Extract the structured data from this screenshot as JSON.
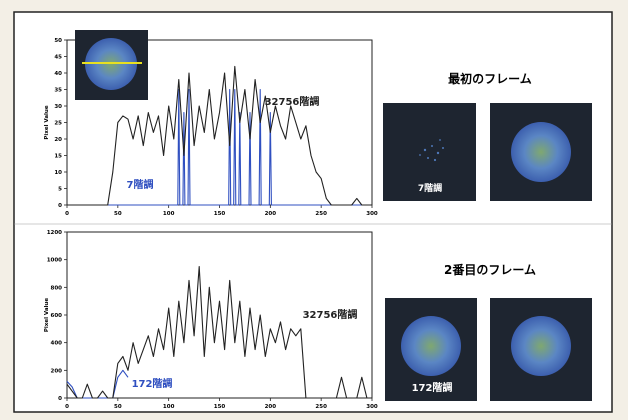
{
  "chart_data": [
    {
      "type": "line",
      "y_label": "Pixel Value",
      "xlim": [
        0,
        300
      ],
      "xticks": [
        0,
        50,
        100,
        150,
        200,
        250,
        300
      ],
      "ylim": [
        0,
        50
      ],
      "yticks": [
        0,
        5,
        10,
        15,
        20,
        25,
        30,
        35,
        40,
        45,
        50
      ],
      "series": [
        {
          "name": "32756階調",
          "color": "#222222",
          "x": [
            0,
            5,
            10,
            15,
            20,
            25,
            30,
            35,
            40,
            45,
            50,
            55,
            60,
            65,
            70,
            75,
            80,
            85,
            90,
            95,
            100,
            105,
            110,
            115,
            120,
            125,
            130,
            135,
            140,
            145,
            150,
            155,
            160,
            165,
            170,
            175,
            180,
            185,
            190,
            195,
            200,
            205,
            210,
            215,
            220,
            225,
            230,
            235,
            240,
            245,
            250,
            255,
            260,
            265,
            270,
            275,
            280,
            285,
            290,
            295,
            300
          ],
          "values": [
            0,
            0,
            0,
            0,
            0,
            0,
            0,
            0,
            0,
            10,
            25,
            27,
            26,
            20,
            27,
            18,
            28,
            22,
            27,
            15,
            30,
            20,
            38,
            15,
            40,
            18,
            30,
            22,
            35,
            20,
            28,
            40,
            18,
            42,
            25,
            35,
            20,
            38,
            25,
            33,
            22,
            30,
            24,
            20,
            30,
            25,
            20,
            24,
            15,
            10,
            8,
            2,
            0,
            0,
            0,
            0,
            0,
            2,
            0,
            0,
            0
          ]
        },
        {
          "name": "7階調",
          "color": "#2f4fc0",
          "x": [
            0,
            109,
            110,
            111,
            114,
            115,
            116,
            119,
            120,
            121,
            159,
            160,
            161,
            164,
            165,
            166,
            169,
            170,
            171,
            179,
            180,
            181,
            189,
            190,
            191,
            199,
            200,
            201,
            300
          ],
          "values": [
            0,
            0,
            35,
            0,
            0,
            28,
            0,
            0,
            35,
            0,
            0,
            35,
            0,
            0,
            35,
            0,
            0,
            28,
            0,
            0,
            28,
            0,
            0,
            35,
            0,
            0,
            28,
            0,
            0
          ]
        }
      ]
    },
    {
      "type": "line",
      "y_label": "Pixel Value",
      "xlim": [
        0,
        300
      ],
      "xticks": [
        0,
        50,
        100,
        150,
        200,
        250,
        300
      ],
      "ylim": [
        0,
        1200
      ],
      "yticks": [
        0,
        200,
        400,
        600,
        800,
        1000,
        1200
      ],
      "series": [
        {
          "name": "32756階調",
          "color": "#222222",
          "x": [
            0,
            5,
            10,
            15,
            20,
            25,
            30,
            35,
            40,
            45,
            50,
            55,
            60,
            65,
            70,
            75,
            80,
            85,
            90,
            95,
            100,
            105,
            110,
            115,
            120,
            125,
            130,
            135,
            140,
            145,
            150,
            155,
            160,
            165,
            170,
            175,
            180,
            185,
            190,
            195,
            200,
            205,
            210,
            215,
            220,
            225,
            230,
            235,
            240,
            245,
            250,
            255,
            260,
            265,
            270,
            275,
            280,
            285,
            290,
            295,
            300
          ],
          "values": [
            100,
            50,
            0,
            0,
            100,
            0,
            0,
            50,
            0,
            0,
            250,
            300,
            200,
            400,
            250,
            350,
            450,
            300,
            500,
            350,
            650,
            300,
            700,
            400,
            850,
            450,
            950,
            300,
            800,
            400,
            700,
            350,
            850,
            400,
            700,
            300,
            650,
            350,
            600,
            300,
            500,
            400,
            550,
            350,
            500,
            450,
            500,
            0,
            0,
            0,
            0,
            0,
            0,
            0,
            150,
            0,
            0,
            0,
            150,
            0,
            0
          ]
        },
        {
          "name": "172階調",
          "color": "#2f4fc0",
          "x": [
            0,
            5,
            10,
            15,
            20,
            25,
            30,
            35,
            40,
            45,
            50,
            55,
            60
          ],
          "values": [
            120,
            80,
            0,
            0,
            0,
            0,
            0,
            0,
            0,
            0,
            150,
            200,
            150
          ]
        }
      ]
    }
  ],
  "side_panels": [
    {
      "title": "最初のフレーム",
      "label": "7階調"
    },
    {
      "title": "2番目のフレーム",
      "label": "172階調"
    }
  ]
}
